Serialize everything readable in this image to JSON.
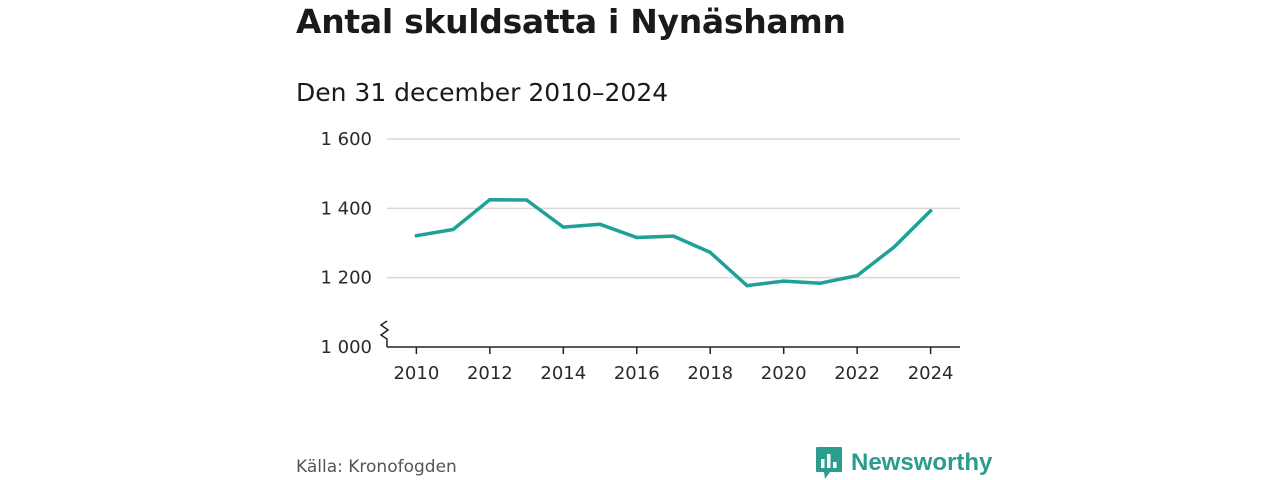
{
  "title": "Antal skuldsatta i Nynäshamn",
  "subtitle": "Den 31 december 2010–2024",
  "source": "Källa: Kronofogden",
  "brand": {
    "name": "Newsworthy",
    "icon": "bar-chart-speech-bubble-icon",
    "color": "#2a9d8f"
  },
  "colors": {
    "line": "#1fa195",
    "grid": "#d9d9d9",
    "axis": "#222222"
  },
  "chart_data": {
    "type": "line",
    "title": "Antal skuldsatta i Nynäshamn",
    "subtitle": "Den 31 december 2010–2024",
    "xlabel": "",
    "ylabel": "",
    "x": [
      2010,
      2011,
      2012,
      2013,
      2014,
      2015,
      2016,
      2017,
      2018,
      2019,
      2020,
      2021,
      2022,
      2023,
      2024
    ],
    "series": [
      {
        "name": "Antal skuldsatta",
        "values": [
          1321,
          1339,
          1425,
          1424,
          1346,
          1354,
          1316,
          1320,
          1273,
          1177,
          1190,
          1184,
          1206,
          1288,
          1393
        ]
      }
    ],
    "xlim": [
      2009.2,
      2024.8
    ],
    "ylim": [
      1000,
      1600
    ],
    "xticks": [
      2010,
      2012,
      2014,
      2016,
      2018,
      2020,
      2022,
      2024
    ],
    "xtick_labels": [
      "2010",
      "2012",
      "2014",
      "2016",
      "2018",
      "2020",
      "2022",
      "2024"
    ],
    "yticks": [
      1000,
      1200,
      1400,
      1600
    ],
    "ytick_labels": [
      "1 000",
      "1 200",
      "1 400",
      "1 600"
    ],
    "grid": true,
    "axis_break": true
  }
}
